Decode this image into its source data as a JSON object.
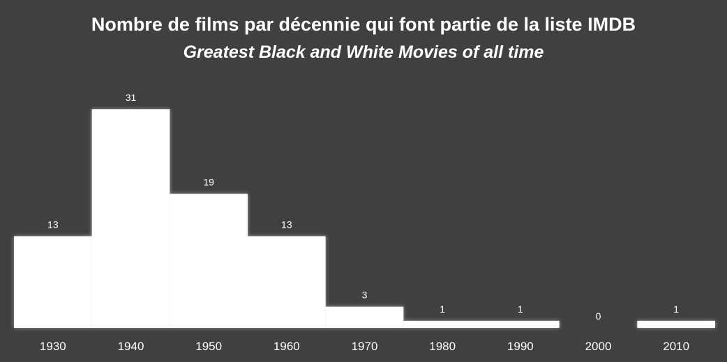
{
  "chart_data": {
    "type": "bar",
    "title": "Nombre de films par décennie qui font partie de la liste IMDB",
    "subtitle": "Greatest Black and White Movies of all time",
    "categories": [
      "1930",
      "1940",
      "1950",
      "1960",
      "1970",
      "1980",
      "1990",
      "2000",
      "2010"
    ],
    "values": [
      13,
      31,
      19,
      13,
      3,
      1,
      1,
      0,
      1
    ],
    "xlabel": "",
    "ylabel": "",
    "ylim": [
      0,
      31
    ],
    "grid": false,
    "legend": "none",
    "colors": {
      "background": "#404040",
      "bar": "#ffffff",
      "glow": "#cfcfcf",
      "text": "#ffffff"
    }
  }
}
